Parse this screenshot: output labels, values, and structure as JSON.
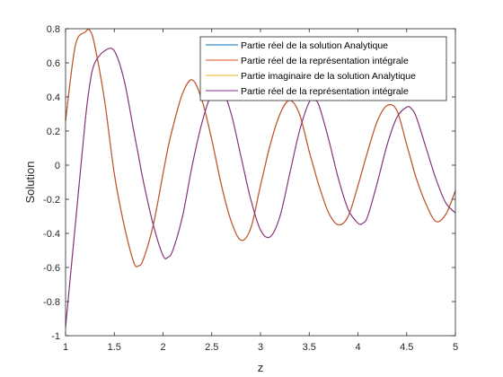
{
  "chart_data": {
    "type": "line",
    "title": "",
    "xlabel": "z",
    "ylabel": "Solution",
    "xlim": [
      1,
      5
    ],
    "ylim": [
      -1,
      0.8
    ],
    "xticks": [
      1,
      1.5,
      2,
      2.5,
      3,
      3.5,
      4,
      4.5,
      5
    ],
    "xtick_labels": [
      "1",
      "1.5",
      "2",
      "2.5",
      "3",
      "3.5",
      "4",
      "4.5",
      "5"
    ],
    "yticks": [
      -1,
      -0.8,
      -0.6,
      -0.4,
      -0.2,
      0,
      0.2,
      0.4,
      0.6,
      0.8
    ],
    "ytick_labels": [
      "-1",
      "-0.8",
      "-0.6",
      "-0.4",
      "-0.2",
      "0",
      "0.2",
      "0.4",
      "0.6",
      "0.8"
    ],
    "grid": false,
    "legend_position": "top-right",
    "x": [
      1,
      1.1,
      1.2,
      1.25,
      1.3,
      1.4,
      1.5,
      1.6,
      1.7,
      1.75,
      1.8,
      1.9,
      2.0,
      2.05,
      2.1,
      2.2,
      2.3,
      2.4,
      2.5,
      2.6,
      2.7,
      2.8,
      2.9,
      3.0,
      3.1,
      3.2,
      3.3,
      3.4,
      3.5,
      3.55,
      3.6,
      3.7,
      3.8,
      3.9,
      4.0,
      4.05,
      4.1,
      4.2,
      4.3,
      4.4,
      4.5,
      4.55,
      4.6,
      4.7,
      4.8,
      4.9,
      5.0
    ],
    "series": [
      {
        "name": "Partie réel de la solution Analytique",
        "color": "#0072BD",
        "values": [
          0.26,
          0.7,
          0.78,
          0.79,
          0.7,
          0.38,
          -0.05,
          -0.35,
          -0.57,
          -0.59,
          -0.55,
          -0.35,
          -0.05,
          0.1,
          0.22,
          0.42,
          0.5,
          0.38,
          0.15,
          -0.12,
          -0.33,
          -0.44,
          -0.37,
          -0.12,
          0.12,
          0.3,
          0.38,
          0.3,
          0.08,
          -0.02,
          -0.12,
          -0.28,
          -0.35,
          -0.3,
          -0.12,
          -0.02,
          0.08,
          0.26,
          0.35,
          0.32,
          0.12,
          0.02,
          -0.08,
          -0.23,
          -0.33,
          -0.29,
          -0.15
        ]
      },
      {
        "name": "Partie réel de la représentation intégrale",
        "color": "#D95319",
        "values": [
          0.26,
          0.7,
          0.78,
          0.79,
          0.7,
          0.38,
          -0.05,
          -0.35,
          -0.57,
          -0.59,
          -0.55,
          -0.35,
          -0.05,
          0.1,
          0.22,
          0.42,
          0.5,
          0.38,
          0.15,
          -0.12,
          -0.33,
          -0.44,
          -0.37,
          -0.12,
          0.12,
          0.3,
          0.38,
          0.3,
          0.08,
          -0.02,
          -0.12,
          -0.28,
          -0.35,
          -0.3,
          -0.12,
          -0.02,
          0.08,
          0.26,
          0.35,
          0.32,
          0.12,
          0.02,
          -0.08,
          -0.23,
          -0.33,
          -0.29,
          -0.15
        ]
      },
      {
        "name": "Partie imaginaire de la solution Analytique",
        "color": "#EDB120",
        "values": [
          -0.95,
          -0.35,
          0.25,
          0.48,
          0.6,
          0.67,
          0.67,
          0.5,
          0.2,
          0.05,
          -0.1,
          -0.35,
          -0.53,
          -0.54,
          -0.5,
          -0.3,
          0.0,
          0.25,
          0.42,
          0.45,
          0.3,
          0.05,
          -0.2,
          -0.38,
          -0.42,
          -0.3,
          -0.05,
          0.2,
          0.37,
          0.38,
          0.35,
          0.15,
          -0.08,
          -0.26,
          -0.34,
          -0.34,
          -0.3,
          -0.1,
          0.12,
          0.28,
          0.34,
          0.33,
          0.28,
          0.1,
          -0.08,
          -0.22,
          -0.28
        ]
      },
      {
        "name": "Partie réel de la représentation intégrale",
        "color": "#7E2F8E",
        "values": [
          -0.95,
          -0.35,
          0.25,
          0.48,
          0.6,
          0.67,
          0.67,
          0.5,
          0.2,
          0.05,
          -0.1,
          -0.35,
          -0.53,
          -0.54,
          -0.5,
          -0.3,
          0.0,
          0.25,
          0.42,
          0.45,
          0.3,
          0.05,
          -0.2,
          -0.38,
          -0.42,
          -0.3,
          -0.05,
          0.2,
          0.37,
          0.38,
          0.35,
          0.15,
          -0.08,
          -0.26,
          -0.34,
          -0.34,
          -0.3,
          -0.1,
          0.12,
          0.28,
          0.34,
          0.33,
          0.28,
          0.1,
          -0.08,
          -0.22,
          -0.28
        ]
      }
    ]
  }
}
